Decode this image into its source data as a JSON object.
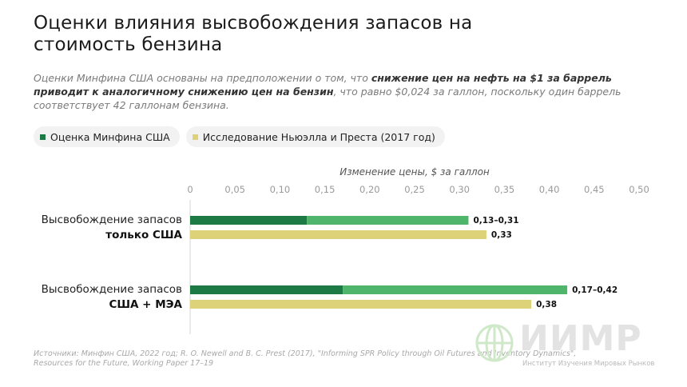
{
  "title": "Оценки влияния высвобождения запасов на стоимость бензина",
  "subtitle": {
    "part1": "Оценки Минфина США основаны на предположении о том, что ",
    "bold": "снижение цен на нефть на $1 за баррель приводит к аналогичному снижению цен на бензин",
    "part2": ", что равно $0,024 за галлон, поскольку один баррель соответствует 42 галлонам бензина."
  },
  "legend": [
    {
      "label": "Оценка Минфина США",
      "color": "#1e7a45"
    },
    {
      "label": "Исследование Ньюэлла и Преста (2017 год)",
      "color": "#ddd27a"
    }
  ],
  "chart_data": {
    "type": "bar",
    "orientation": "horizontal",
    "xlabel": "Изменение цены, $ за галлон",
    "xlim": [
      0,
      0.5
    ],
    "ticks": [
      0,
      0.05,
      0.1,
      0.15,
      0.2,
      0.25,
      0.3,
      0.35,
      0.4,
      0.45,
      0.5
    ],
    "tick_labels": [
      "0",
      "0,05",
      "0,10",
      "0,15",
      "0,20",
      "0,25",
      "0,30",
      "0,35",
      "0,40",
      "0,45",
      "0,50"
    ],
    "grid": false,
    "groups": [
      {
        "label_line1": "Высвобождение запасов",
        "label_line2": "только США",
        "treasury_range": [
          0.13,
          0.31
        ],
        "treasury_label": "0,13–0,31",
        "study_value": 0.33,
        "study_label": "0,33"
      },
      {
        "label_line1": "Высвобождение запасов",
        "label_line2": "США + МЭА",
        "treasury_range": [
          0.17,
          0.42
        ],
        "treasury_label": "0,17–0,42",
        "study_value": 0.38,
        "study_label": "0,38"
      }
    ],
    "colors": {
      "treasury_low": "#1e7a45",
      "treasury_high": "#4fb56a",
      "study": "#ddd27a"
    }
  },
  "source": "Источники: Минфин США, 2022 год; R. O. Newell and B. C. Prest (2017), \"Informing SPR Policy through Oil Futures and Inventory Dynamics\", Resources for the Future, Working Paper 17–19",
  "logo": {
    "name": "ИИМР",
    "subtitle": "Институт Изучения Мировых Рынков",
    "icon": "globe-icon"
  }
}
